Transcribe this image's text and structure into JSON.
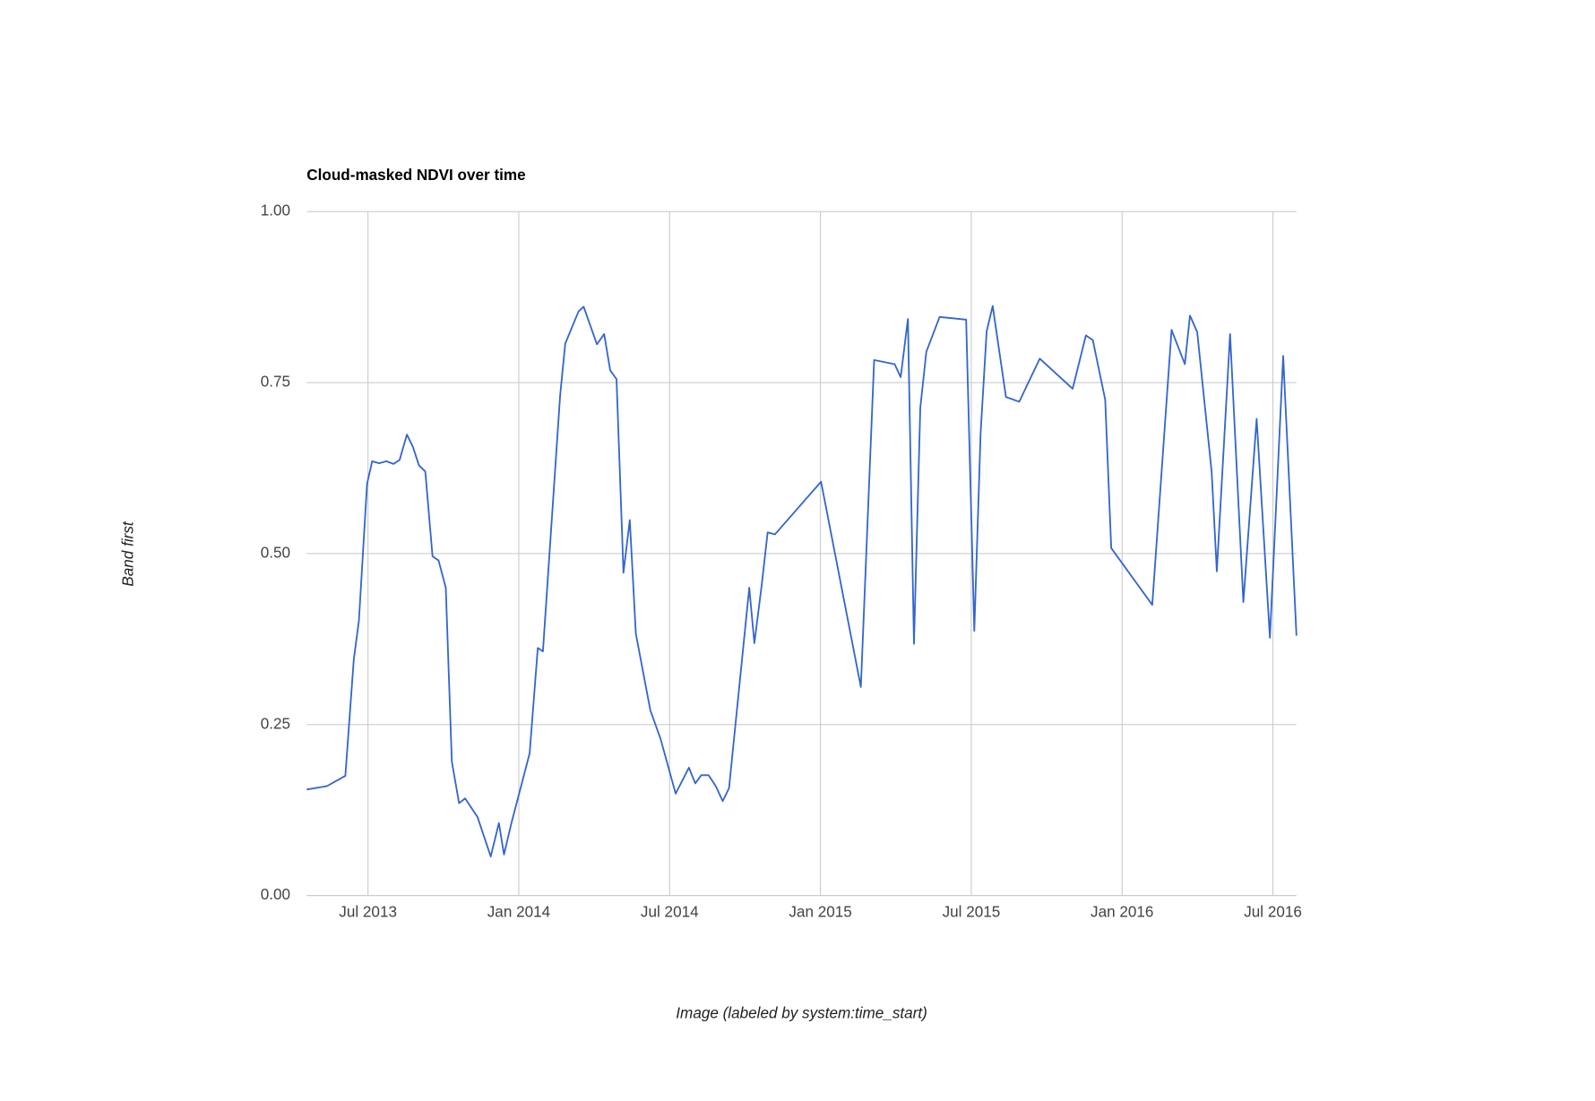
{
  "chart_data": {
    "type": "line",
    "title": "Cloud-masked NDVI over time",
    "x_label": "Image (labeled by system:time_start)",
    "y_label": "Band first",
    "x": [
      2013.297,
      2013.364,
      2013.425,
      2013.453,
      2013.47,
      2013.497,
      2013.514,
      2013.537,
      2013.561,
      2013.585,
      2013.605,
      2013.629,
      2013.649,
      2013.669,
      2013.69,
      2013.714,
      2013.734,
      2013.758,
      2013.778,
      2013.802,
      2013.822,
      2013.863,
      2013.907,
      2013.934,
      2013.951,
      2013.975,
      2014.036,
      2014.063,
      2014.08,
      2014.137,
      2014.154,
      2014.198,
      2014.215,
      2014.259,
      2014.283,
      2014.303,
      2014.324,
      2014.347,
      2014.368,
      2014.388,
      2014.436,
      2014.47,
      2014.52,
      2014.564,
      2014.585,
      2014.605,
      2014.629,
      2014.653,
      2014.676,
      2014.697,
      2014.764,
      2014.781,
      2014.805,
      2014.825,
      2014.849,
      2015.002,
      2015.134,
      2015.178,
      2015.246,
      2015.266,
      2015.29,
      2015.31,
      2015.331,
      2015.351,
      2015.395,
      2015.483,
      2015.51,
      2015.531,
      2015.551,
      2015.571,
      2015.615,
      2015.659,
      2015.727,
      2015.836,
      2015.88,
      2015.903,
      2015.944,
      2015.964,
      2016.1,
      2016.164,
      2016.208,
      2016.225,
      2016.249,
      2016.297,
      2016.314,
      2016.358,
      2016.402,
      2016.446,
      2016.49,
      2016.534,
      2016.578
    ],
    "series": [
      {
        "name": "Band first",
        "color": "#3366cc",
        "values": [
          0.155,
          0.16,
          0.175,
          0.345,
          0.402,
          0.602,
          0.635,
          0.632,
          0.635,
          0.631,
          0.637,
          0.674,
          0.656,
          0.629,
          0.62,
          0.496,
          0.49,
          0.45,
          0.196,
          0.135,
          0.142,
          0.115,
          0.057,
          0.106,
          0.06,
          0.105,
          0.208,
          0.362,
          0.357,
          0.731,
          0.807,
          0.854,
          0.861,
          0.806,
          0.821,
          0.768,
          0.755,
          0.472,
          0.549,
          0.383,
          0.271,
          0.229,
          0.149,
          0.187,
          0.164,
          0.176,
          0.176,
          0.16,
          0.138,
          0.157,
          0.45,
          0.369,
          0.453,
          0.531,
          0.528,
          0.605,
          0.305,
          0.783,
          0.777,
          0.758,
          0.843,
          0.368,
          0.713,
          0.795,
          0.846,
          0.842,
          0.387,
          0.676,
          0.825,
          0.862,
          0.729,
          0.722,
          0.785,
          0.741,
          0.819,
          0.812,
          0.725,
          0.508,
          0.425,
          0.827,
          0.777,
          0.848,
          0.824,
          0.619,
          0.474,
          0.821,
          0.429,
          0.697,
          0.377,
          0.789,
          0.38
        ]
      }
    ],
    "xlim": [
      2013.297,
      2016.578
    ],
    "xticks": [
      {
        "value": 2013.5,
        "label": "Jul 2013"
      },
      {
        "value": 2014.0,
        "label": "Jan 2014"
      },
      {
        "value": 2014.5,
        "label": "Jul 2014"
      },
      {
        "value": 2015.0,
        "label": "Jan 2015"
      },
      {
        "value": 2015.5,
        "label": "Jul 2015"
      },
      {
        "value": 2016.0,
        "label": "Jan 2016"
      },
      {
        "value": 2016.5,
        "label": "Jul 2016"
      }
    ],
    "ylim": [
      0,
      1
    ],
    "yticks": [
      {
        "value": 0,
        "label": "0.00"
      },
      {
        "value": 0.25,
        "label": "0.25"
      },
      {
        "value": 0.5,
        "label": "0.50"
      },
      {
        "value": 0.75,
        "label": "0.75"
      },
      {
        "value": 1,
        "label": "1.00"
      }
    ],
    "grid": true
  }
}
